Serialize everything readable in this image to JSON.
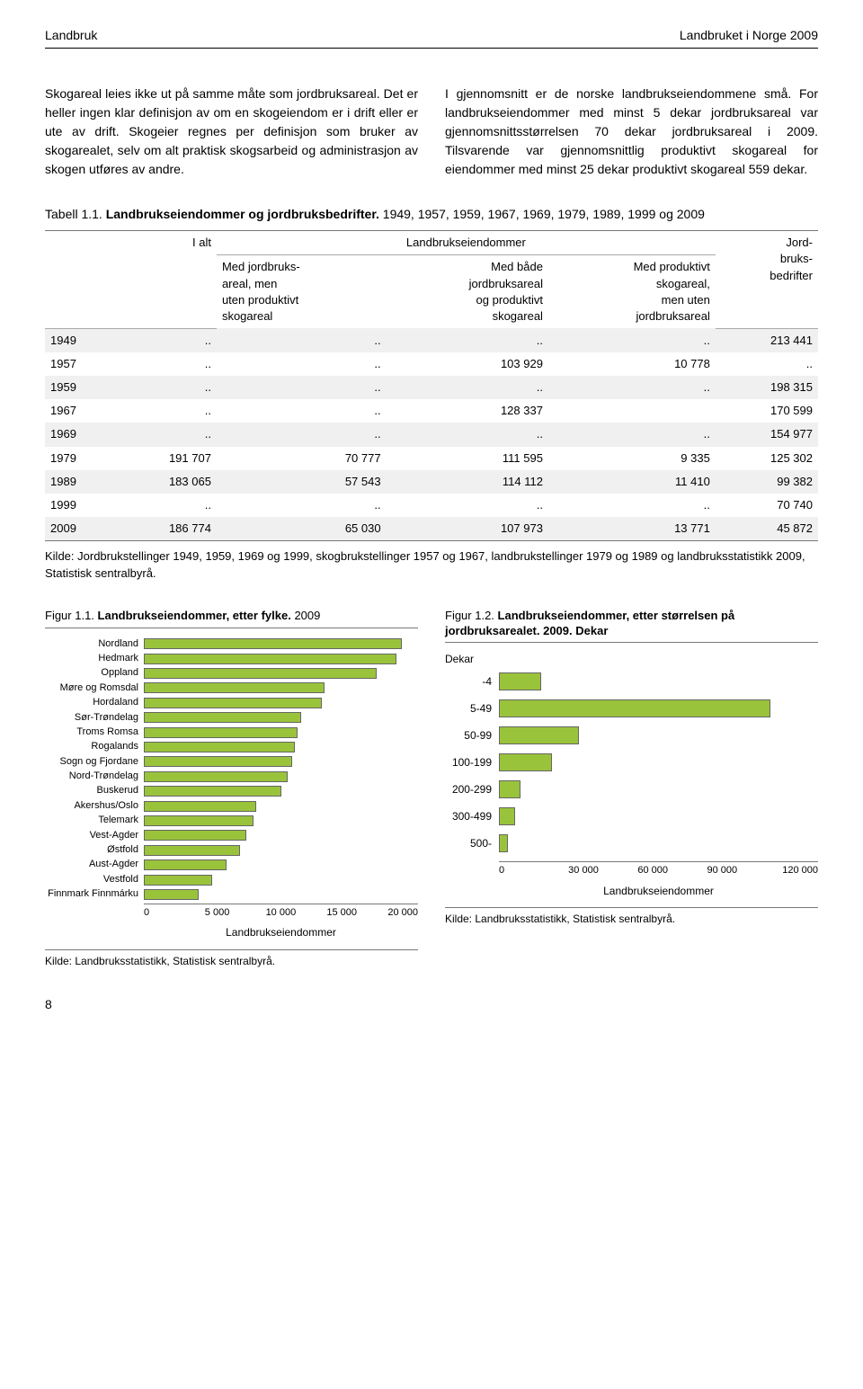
{
  "header": {
    "left": "Landbruk",
    "right": "Landbruket i Norge 2009"
  },
  "body": {
    "col1": "Skogareal leies ikke ut på samme måte som jordbruksareal. Det er heller ingen klar definisjon av om en skogeiendom er i drift eller er ute av drift. Skogeier regnes per definisjon som bruker av skogarealet, selv om alt praktisk skogsarbeid og administrasjon av skogen utføres av andre.",
    "col2": "I gjennomsnitt er de norske landbrukseiendommene små. For landbrukseiendommer med minst 5 dekar jordbruksareal var gjennomsnittsstørrelsen 70 dekar jordbruksareal i 2009. Tilsvarende var gjennomsnittlig produktivt skogareal for eiendommer med minst 25 dekar produktivt skogareal 559 dekar."
  },
  "table": {
    "caption_prefix": "Tabell 1.1. ",
    "caption_bold": "Landbrukseiendommer og jordbruksbedrifter.",
    "caption_suffix": " 1949, 1957, 1959, 1967, 1969, 1979, 1989, 1999 og 2009",
    "group_header": "Landbrukseiendommer",
    "columns": [
      "",
      "I alt",
      "Med jordbruks-\nareal, men\nuten produktivt\nskogareal",
      "Med både\njordbruksareal\nog produktivt\nskogareal",
      "Med produktivt\nskogareal,\nmen uten\njordbruksareal",
      "Jord-\nbruks-\nbedrifter"
    ],
    "rows": [
      [
        "1949",
        "..",
        "..",
        "..",
        "..",
        "213 441"
      ],
      [
        "1957",
        "..",
        "..",
        "103 929",
        "10 778",
        ".."
      ],
      [
        "1959",
        "..",
        "..",
        "..",
        "..",
        "198 315"
      ],
      [
        "1967",
        "..",
        "..",
        "128 337",
        "",
        "170 599"
      ],
      [
        "1969",
        "..",
        "..",
        "..",
        "..",
        "154 977"
      ],
      [
        "1979",
        "191 707",
        "70 777",
        "111 595",
        "9 335",
        "125 302"
      ],
      [
        "1989",
        "183 065",
        "57 543",
        "114 112",
        "11 410",
        "99 382"
      ],
      [
        "1999",
        "..",
        "..",
        "..",
        "..",
        "70 740"
      ],
      [
        "2009",
        "186 774",
        "65 030",
        "107 973",
        "13 771",
        "45 872"
      ]
    ],
    "source": "Kilde: Jordbrukstellinger 1949, 1959, 1969 og 1999, skogbrukstellinger 1957 og 1967, landbrukstellinger 1979 og 1989 og landbruksstatistikk 2009, Statistisk sentralbyrå."
  },
  "fig1": {
    "title_prefix": "Figur 1.1. ",
    "title_bold": "Landbrukseiendommer, etter fylke.",
    "title_suffix": " 2009",
    "bar_color": "#9ac33c",
    "xmax": 20000,
    "xticks": [
      "0",
      "5 000",
      "10 000",
      "15 000",
      "20 000"
    ],
    "xlabel": "Landbrukseiendommer",
    "categories": [
      "Nordland",
      "Hedmark",
      "Oppland",
      "Møre og Romsdal",
      "Hordaland",
      "Sør-Trøndelag",
      "Troms Romsa",
      "Rogalands",
      "Sogn og Fjordane",
      "Nord-Trøndelag",
      "Buskerud",
      "Akershus/Oslo",
      "Telemark",
      "Vest-Agder",
      "Østfold",
      "Aust-Agder",
      "Vestfold",
      "Finnmark Finnmárku"
    ],
    "values": [
      18800,
      18400,
      17000,
      13200,
      13000,
      11500,
      11200,
      11000,
      10800,
      10500,
      10000,
      8200,
      8000,
      7500,
      7000,
      6000,
      5000,
      4000
    ],
    "source": "Kilde: Landbruksstatistikk, Statistisk sentralbyrå."
  },
  "fig2": {
    "title_prefix": "Figur 1.2. ",
    "title_bold": "Landbrukseiendommer, etter størrelsen på jordbruksarealet. 2009. Dekar",
    "ylabel": "Dekar",
    "bar_color": "#9ac33c",
    "xmax": 120000,
    "xticks": [
      "0",
      "30 000",
      "60 000",
      "90 000",
      "120 000"
    ],
    "xlabel": "Landbrukseiendommer",
    "categories": [
      "-4",
      "5-49",
      "50-99",
      "100-199",
      "200-299",
      "300-499",
      "500-"
    ],
    "values": [
      16000,
      102000,
      30000,
      20000,
      8000,
      6000,
      3500
    ],
    "source": "Kilde: Landbruksstatistikk, Statistisk sentralbyrå."
  },
  "page_number": "8"
}
